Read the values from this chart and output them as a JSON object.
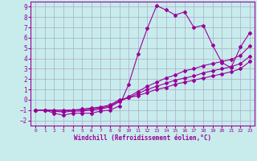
{
  "xlabel": "Windchill (Refroidissement éolien,°C)",
  "bg_color": "#c8ecec",
  "line_color": "#990099",
  "grid_color": "#aaaacc",
  "xlim": [
    -0.5,
    23.5
  ],
  "ylim": [
    -2.5,
    9.5
  ],
  "xticks": [
    0,
    1,
    2,
    3,
    4,
    5,
    6,
    7,
    8,
    9,
    10,
    11,
    12,
    13,
    14,
    15,
    16,
    17,
    18,
    19,
    20,
    21,
    22,
    23
  ],
  "yticks": [
    -2,
    -1,
    0,
    1,
    2,
    3,
    4,
    5,
    6,
    7,
    8,
    9
  ],
  "line1_x": [
    0,
    1,
    2,
    3,
    4,
    5,
    6,
    7,
    8,
    9,
    10,
    11,
    12,
    13,
    14,
    15,
    16,
    17,
    18,
    19,
    20,
    21,
    22,
    23
  ],
  "line1_y": [
    -1.0,
    -1.0,
    -1.3,
    -1.5,
    -1.3,
    -1.3,
    -1.3,
    -1.1,
    -1.0,
    -0.6,
    1.5,
    4.4,
    6.9,
    9.1,
    8.7,
    8.2,
    8.5,
    7.0,
    7.2,
    5.3,
    3.6,
    3.1,
    5.1,
    6.5
  ],
  "line2_x": [
    0,
    1,
    2,
    3,
    4,
    5,
    6,
    7,
    8,
    9,
    10,
    11,
    12,
    13,
    14,
    15,
    16,
    17,
    18,
    19,
    20,
    21,
    22,
    23
  ],
  "line2_y": [
    -1.0,
    -1.0,
    -1.1,
    -1.2,
    -1.1,
    -1.1,
    -1.0,
    -0.9,
    -0.7,
    -0.2,
    0.3,
    0.8,
    1.3,
    1.7,
    2.1,
    2.4,
    2.8,
    3.0,
    3.3,
    3.5,
    3.7,
    3.9,
    4.3,
    5.2
  ],
  "line3_x": [
    0,
    1,
    2,
    3,
    4,
    5,
    6,
    7,
    8,
    9,
    10,
    11,
    12,
    13,
    14,
    15,
    16,
    17,
    18,
    19,
    20,
    21,
    22,
    23
  ],
  "line3_y": [
    -1.0,
    -1.0,
    -1.1,
    -1.1,
    -1.0,
    -1.0,
    -0.9,
    -0.8,
    -0.6,
    -0.1,
    0.2,
    0.6,
    1.0,
    1.3,
    1.6,
    1.9,
    2.1,
    2.3,
    2.6,
    2.8,
    3.0,
    3.2,
    3.5,
    4.2
  ],
  "line4_x": [
    0,
    1,
    2,
    3,
    4,
    5,
    6,
    7,
    8,
    9,
    10,
    11,
    12,
    13,
    14,
    15,
    16,
    17,
    18,
    19,
    20,
    21,
    22,
    23
  ],
  "line4_y": [
    -1.0,
    -1.0,
    -1.0,
    -1.0,
    -1.0,
    -0.9,
    -0.8,
    -0.7,
    -0.5,
    0.0,
    0.2,
    0.4,
    0.7,
    1.0,
    1.2,
    1.5,
    1.7,
    1.9,
    2.1,
    2.3,
    2.5,
    2.7,
    3.0,
    3.7
  ],
  "marker": "D",
  "markersize": 2.0,
  "linewidth": 0.8
}
